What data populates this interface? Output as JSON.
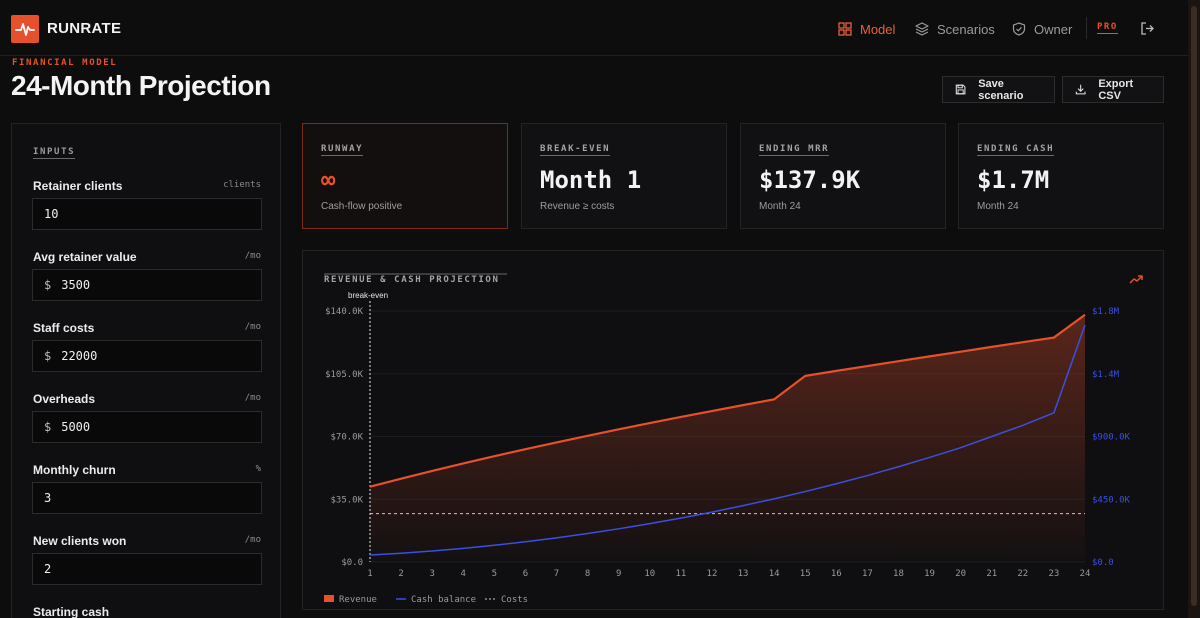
{
  "app": {
    "brand": "RUNRATE"
  },
  "nav": {
    "items": [
      {
        "label": "Model",
        "icon": "grid-icon",
        "active": true
      },
      {
        "label": "Scenarios",
        "icon": "layers-icon",
        "active": false
      },
      {
        "label": "Owner",
        "icon": "shield-icon",
        "active": false
      }
    ],
    "badge": "PRO"
  },
  "page": {
    "eyebrow": "FINANCIAL MODEL",
    "title": "24-Month Projection"
  },
  "actions": {
    "save_label": "Save scenario",
    "export_label": "Export CSV"
  },
  "inputs": {
    "heading": "INPUTS",
    "fields": [
      {
        "label": "Retainer clients",
        "unit": "clients",
        "prefix": "",
        "value": "10"
      },
      {
        "label": "Avg retainer value",
        "unit": "/mo",
        "prefix": "$",
        "value": "3500"
      },
      {
        "label": "Staff costs",
        "unit": "/mo",
        "prefix": "$",
        "value": "22000"
      },
      {
        "label": "Overheads",
        "unit": "/mo",
        "prefix": "$",
        "value": "5000"
      },
      {
        "label": "Monthly churn",
        "unit": "%",
        "prefix": "",
        "value": "3"
      },
      {
        "label": "New clients won",
        "unit": "/mo",
        "prefix": "",
        "value": "2"
      },
      {
        "label": "Starting cash",
        "unit": "",
        "prefix": "",
        "value": ""
      }
    ]
  },
  "stats": [
    {
      "label": "RUNWAY",
      "value": "∞",
      "sub": "Cash-flow positive",
      "highlight": true
    },
    {
      "label": "BREAK-EVEN",
      "value": "Month 1",
      "sub": "Revenue ≥ costs",
      "highlight": false
    },
    {
      "label": "ENDING MRR",
      "value": "$137.9K",
      "sub": "Month 24",
      "highlight": false
    },
    {
      "label": "ENDING CASH",
      "value": "$1.7M",
      "sub": "Month 24",
      "highlight": false
    }
  ],
  "colors": {
    "accent": "#e5512c",
    "cash": "#3b4fe0",
    "costs": "#c9c9c9"
  },
  "chart_data": {
    "type": "line",
    "title": "REVENUE & CASH PROJECTION",
    "annotation": "break-even",
    "x": [
      1,
      2,
      3,
      4,
      5,
      6,
      7,
      8,
      9,
      10,
      11,
      12,
      13,
      14,
      15,
      16,
      17,
      18,
      19,
      20,
      21,
      22,
      23,
      24
    ],
    "y_left_ticks": [
      "$0.0",
      "$35.0K",
      "$70.0K",
      "$105.0K",
      "$140.0K"
    ],
    "y_right_ticks": [
      "$0.0",
      "$450.0K",
      "$900.0K",
      "$1.4M",
      "$1.8M"
    ],
    "ylim_left": [
      0,
      140000
    ],
    "ylim_right": [
      0,
      1800000
    ],
    "series": [
      {
        "name": "Revenue",
        "axis": "left",
        "values": [
          42000,
          46500,
          50800,
          55000,
          59000,
          62900,
          66700,
          70400,
          74000,
          77500,
          80900,
          84200,
          87500,
          90700,
          103800,
          106600,
          109300,
          112000,
          114700,
          117300,
          120000,
          122600,
          125200,
          137900
        ]
      },
      {
        "name": "Cash balance",
        "axis": "right",
        "values": [
          50000,
          63000,
          79000,
          98000,
          120000,
          145000,
          173000,
          204000,
          238000,
          275000,
          315000,
          358000,
          404000,
          453000,
          505000,
          561000,
          620000,
          683000,
          750000,
          820000,
          900000,
          980000,
          1070000,
          1700000
        ]
      },
      {
        "name": "Costs",
        "axis": "left",
        "values": [
          27000,
          27000,
          27000,
          27000,
          27000,
          27000,
          27000,
          27000,
          27000,
          27000,
          27000,
          27000,
          27000,
          27000,
          27000,
          27000,
          27000,
          27000,
          27000,
          27000,
          27000,
          27000,
          27000,
          27000
        ]
      }
    ],
    "legend": {
      "placement": "bottom-left"
    }
  }
}
